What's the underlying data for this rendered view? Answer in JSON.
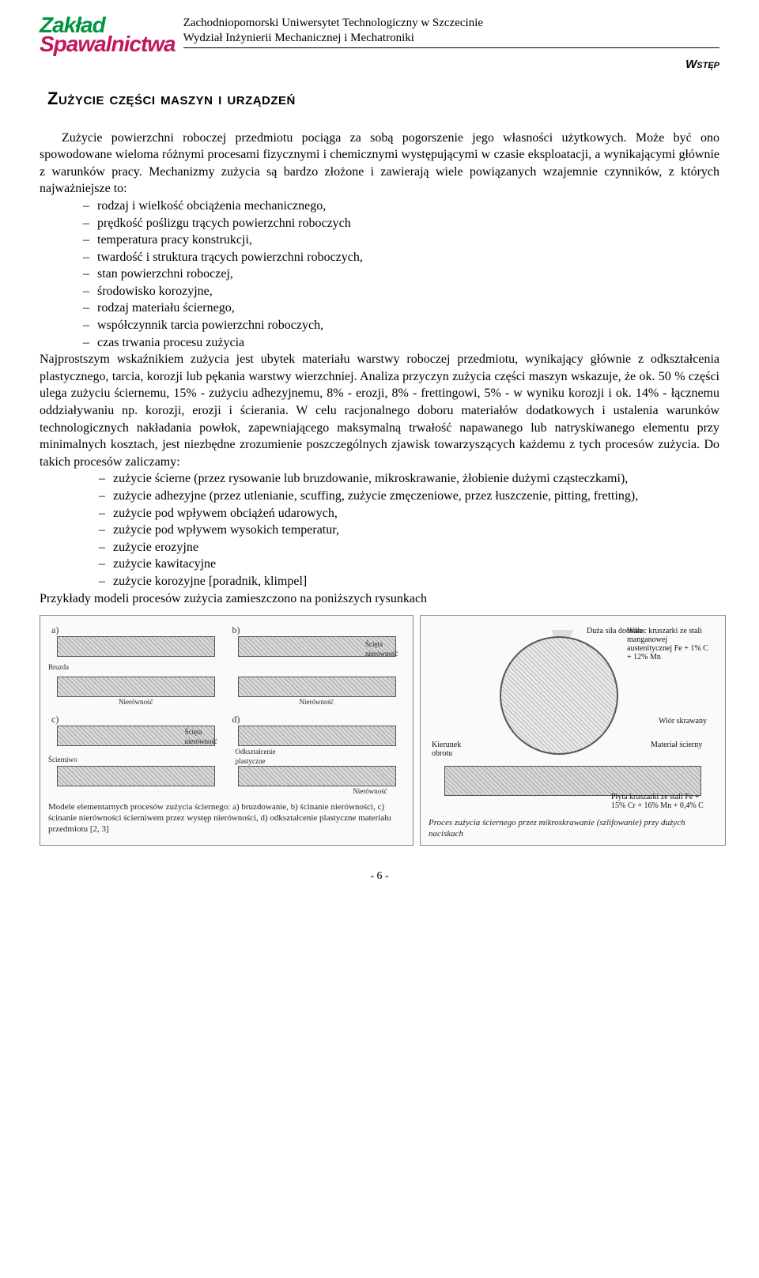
{
  "header": {
    "logo_line1": "Zakład",
    "logo_line2": "Spawalnictwa",
    "university": "Zachodniopomorski Uniwersytet Technologiczny w Szczecinie",
    "faculty": "Wydział Inżynierii Mechanicznej i Mechatroniki",
    "section_label": "Wstęp"
  },
  "title": "Zużycie części maszyn i urządzeń",
  "para1": "Zużycie powierzchni roboczej przedmiotu pociąga za sobą pogorszenie jego własności użytkowych. Może być ono spowodowane wieloma różnymi procesami fizycznymi i chemicznymi występującymi w czasie eksploatacji, a wynikającymi głównie z warunków pracy. Mechanizmy zużycia są bardzo złożone i zawierają wiele powiązanych wzajemnie czynników, z których najważniejsze to:",
  "list1": [
    "rodzaj i wielkość obciążenia mechanicznego,",
    "prędkość poślizgu trących powierzchni roboczych",
    "temperatura pracy konstrukcji,",
    "twardość i struktura trących powierzchni roboczych,",
    "stan powierzchni roboczej,",
    "środowisko korozyjne,",
    "rodzaj materiału ściernego,",
    "współczynnik tarcia powierzchni roboczych,",
    "czas trwania procesu zużycia"
  ],
  "para2": "Najprostszym wskaźnikiem zużycia jest ubytek materiału warstwy roboczej przedmiotu, wynikający głównie z odkształcenia plastycznego, tarcia, korozji lub pękania warstwy wierzchniej. Analiza przyczyn zużycia części maszyn wskazuje, że ok. 50 % części ulega zużyciu ściernemu, 15% - zużyciu adhezyjnemu, 8% - erozji, 8% - frettingowi, 5% - w wyniku korozji i ok. 14% - łącznemu oddziaływaniu np. korozji, erozji i ścierania. W celu racjonalnego doboru materiałów dodatkowych i ustalenia warunków technologicznych nakładania powłok, zapewniającego maksymalną trwałość napawanego lub natryskiwanego elementu przy minimalnych kosztach, jest niezbędne zrozumienie poszczególnych zjawisk towarzyszących każdemu z tych procesów zużycia. Do takich procesów zaliczamy:",
  "list2": [
    "zużycie ścierne (przez rysowanie lub bruzdowanie, mikroskrawanie, żłobienie dużymi cząsteczkami),",
    "zużycie adhezyjne (przez utlenianie, scuffing, zużycie zmęczeniowe, przez łuszczenie, pitting, fretting),",
    "zużycie pod wpływem obciążeń udarowych,",
    "zużycie pod wpływem wysokich temperatur,",
    "zużycie erozyjne",
    "zużycie kawitacyjne",
    "zużycie korozyjne [poradnik, klimpel]"
  ],
  "para3": "Przykłady modeli procesów zużycia zamieszczono na poniższych rysunkach",
  "figure_left": {
    "cells": {
      "a": {
        "tag": "a)",
        "label1": "Bruzda",
        "label2": "Nierówność",
        "label3": "Ścięta nierówność"
      },
      "b": {
        "tag": "b)",
        "label1": "Ścięta nierówność",
        "label2": "Nierówność"
      },
      "c": {
        "tag": "c)",
        "label1": "Ścierniwo",
        "label2": "Ścięta nierówność"
      },
      "d": {
        "tag": "d)",
        "label1": "Odkształcenie plastyczne",
        "label2": "Nierówność"
      }
    },
    "caption": "Modele elementarnych procesów zużycia ściernego: a) bruzdowanie, b) ścinanie nierówności, c) ścinanie nierówności ścierniwem przez występ nierówności, d) odkształcenie plastyczne materiału przedmiotu [2, 3]"
  },
  "figure_right": {
    "labels": {
      "force": "Duża siła docisku",
      "roller": "Walec kruszarki ze stali manganowej austenitycznej Fe + 1% C + 12% Mn",
      "chip": "Wiór skrawany",
      "abrasive": "Materiał ścierny",
      "rotation": "Kierunek obrotu",
      "plate": "Płyta kruszarki ze stali Fe + 15% Cr + 16% Mn + 0,4% C"
    },
    "caption": "Proces zużycia ściernego przez mikroskrawanie (szlifowanie) przy dużych naciskach"
  },
  "page_number": "- 6 -",
  "colors": {
    "logo_green": "#009440",
    "logo_magenta": "#c2185b",
    "text": "#000000",
    "bg": "#ffffff"
  }
}
